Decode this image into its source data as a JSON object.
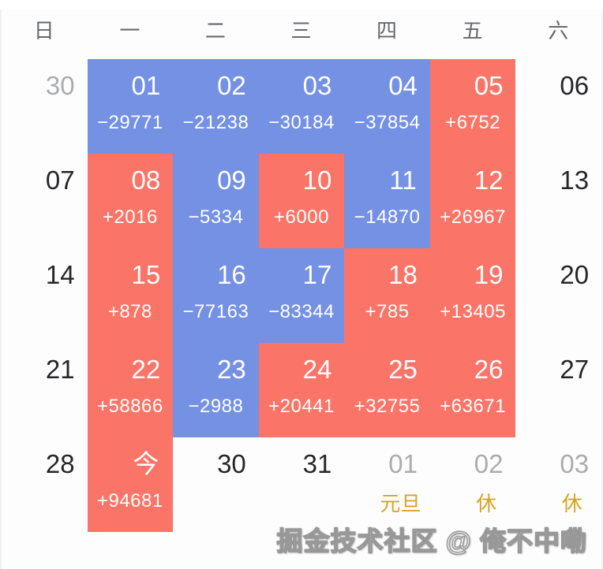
{
  "header": {
    "weekdays": [
      "日",
      "一",
      "二",
      "三",
      "四",
      "五",
      "六"
    ]
  },
  "colors": {
    "profit": "#FA7467",
    "loss": "#7591E3",
    "holiday_gold": "#D9A426",
    "other_month_day": "#ABACB0",
    "current_month_day": "#26262A",
    "weekday_header": "#65686D"
  },
  "weeks": [
    {
      "cells": [
        {
          "day": "30",
          "type": "other"
        },
        {
          "day": "01",
          "type": "loss",
          "result": "−29771"
        },
        {
          "day": "02",
          "type": "loss",
          "result": "−21238"
        },
        {
          "day": "03",
          "type": "loss",
          "result": "−30184"
        },
        {
          "day": "04",
          "type": "loss",
          "result": "−37854"
        },
        {
          "day": "05",
          "type": "profit",
          "result": "+6752"
        },
        {
          "day": "06",
          "type": "normal"
        }
      ]
    },
    {
      "cells": [
        {
          "day": "07",
          "type": "normal"
        },
        {
          "day": "08",
          "type": "profit",
          "result": "+2016"
        },
        {
          "day": "09",
          "type": "loss",
          "result": "−5334"
        },
        {
          "day": "10",
          "type": "profit",
          "result": "+6000"
        },
        {
          "day": "11",
          "type": "loss",
          "result": "−14870"
        },
        {
          "day": "12",
          "type": "profit",
          "result": "+26967"
        },
        {
          "day": "13",
          "type": "normal"
        }
      ]
    },
    {
      "cells": [
        {
          "day": "14",
          "type": "normal"
        },
        {
          "day": "15",
          "type": "profit",
          "result": "+878"
        },
        {
          "day": "16",
          "type": "loss",
          "result": "−77163"
        },
        {
          "day": "17",
          "type": "loss",
          "result": "−83344"
        },
        {
          "day": "18",
          "type": "profit",
          "result": "+785"
        },
        {
          "day": "19",
          "type": "profit",
          "result": "+13405"
        },
        {
          "day": "20",
          "type": "normal"
        }
      ]
    },
    {
      "cells": [
        {
          "day": "21",
          "type": "normal"
        },
        {
          "day": "22",
          "type": "profit",
          "result": "+58866"
        },
        {
          "day": "23",
          "type": "loss",
          "result": "−2988"
        },
        {
          "day": "24",
          "type": "profit",
          "result": "+20441"
        },
        {
          "day": "25",
          "type": "profit",
          "result": "+32755"
        },
        {
          "day": "26",
          "type": "profit",
          "result": "+63671"
        },
        {
          "day": "27",
          "type": "normal"
        }
      ]
    },
    {
      "cells": [
        {
          "day": "28",
          "type": "normal"
        },
        {
          "day": "今",
          "type": "profit",
          "result": "+94681",
          "today": true
        },
        {
          "day": "30",
          "type": "normal"
        },
        {
          "day": "31",
          "type": "normal"
        },
        {
          "day": "01",
          "type": "other",
          "sub": "元旦"
        },
        {
          "day": "02",
          "type": "other",
          "sub": "休"
        },
        {
          "day": "03",
          "type": "other",
          "sub": "休"
        }
      ]
    }
  ],
  "watermark": {
    "text": "掘金技术社区 @ 俺不中嘞"
  }
}
